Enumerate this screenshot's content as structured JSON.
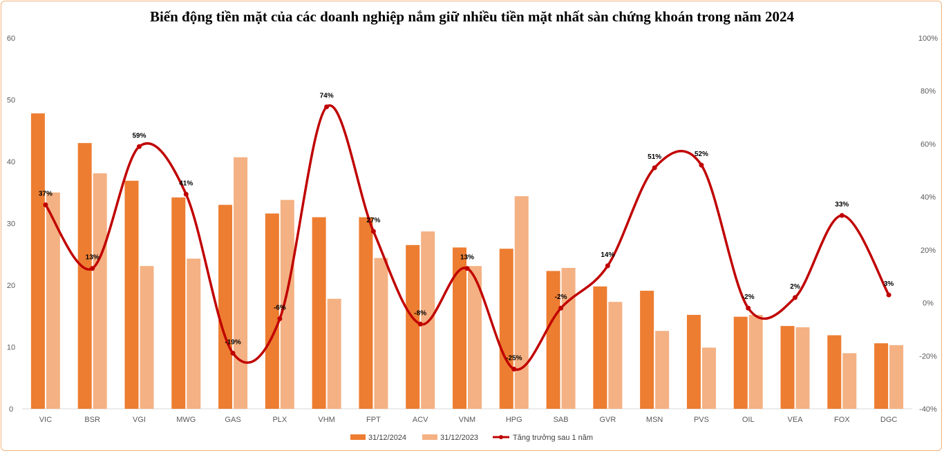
{
  "chart_data": {
    "type": "bar",
    "title": "Biến động tiền mặt của các doanh nghiệp nắm giữ nhiều tiền mặt nhất sàn chứng khoán trong năm 2024",
    "categories": [
      "VIC",
      "BSR",
      "VGI",
      "MWG",
      "GAS",
      "PLX",
      "VHM",
      "FPT",
      "ACV",
      "VNM",
      "HPG",
      "SAB",
      "GVR",
      "MSN",
      "PVS",
      "OIL",
      "VEA",
      "FOX",
      "DGC"
    ],
    "series": [
      {
        "name": "31/12/2024",
        "type": "bar",
        "axis": "left",
        "color": "#ed7d31",
        "values": [
          47.8,
          43.0,
          36.9,
          34.2,
          33.0,
          31.6,
          31.0,
          31.0,
          26.5,
          26.1,
          25.9,
          22.3,
          19.8,
          19.1,
          15.2,
          14.9,
          13.4,
          11.9,
          10.6
        ]
      },
      {
        "name": "31/12/2023",
        "type": "bar",
        "axis": "left",
        "color": "#f4b183",
        "values": [
          35.0,
          38.1,
          23.1,
          24.3,
          40.7,
          33.8,
          17.8,
          24.4,
          28.7,
          23.1,
          34.4,
          22.8,
          17.3,
          12.6,
          9.9,
          15.2,
          13.2,
          9.0,
          10.3
        ]
      },
      {
        "name": "Tăng trưởng sau 1 năm",
        "type": "line",
        "axis": "right",
        "color": "#c00000",
        "values": [
          37,
          13,
          59,
          41,
          -19,
          -6,
          74,
          27,
          -8,
          13,
          -25,
          -2,
          14,
          51,
          52,
          -2,
          2,
          33,
          3
        ],
        "labels": [
          "37%",
          "13%",
          "59%",
          "41%",
          "-19%",
          "-6%",
          "74%",
          "27%",
          "-8%",
          "13%",
          "-25%",
          "-2%",
          "14%",
          "51%",
          "52%",
          "-2%",
          "2%",
          "33%",
          "3%"
        ]
      }
    ],
    "y_left": {
      "min": 0,
      "max": 60,
      "ticks": [
        0,
        10,
        20,
        30,
        40,
        50,
        60
      ],
      "tick_labels": [
        "0",
        "10",
        "20",
        "30",
        "40",
        "50",
        "60"
      ]
    },
    "y_right": {
      "min": -40,
      "max": 100,
      "ticks": [
        -40,
        -20,
        0,
        20,
        40,
        60,
        80,
        100
      ],
      "tick_labels": [
        "-40%",
        "-20%",
        "0%",
        "20%",
        "40%",
        "60%",
        "80%",
        "100%"
      ]
    },
    "grid": false,
    "legend_position": "bottom"
  },
  "colors": {
    "bar_2024": "#ed7d31",
    "bar_2023": "#f4b183",
    "line": "#c00000",
    "frame": "#f0b27a"
  }
}
